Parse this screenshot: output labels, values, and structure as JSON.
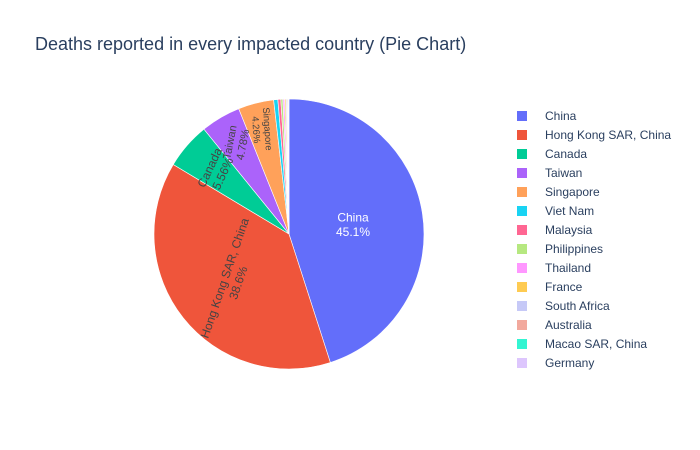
{
  "chart_data": {
    "type": "pie",
    "title": "Deaths reported in every impacted country (Pie Chart)",
    "slices": [
      {
        "label": "China",
        "percent": 45.1,
        "color": "#636efa",
        "text_label": "China",
        "text_value": "45.1%"
      },
      {
        "label": "Hong Kong SAR, China",
        "percent": 38.6,
        "color": "#ef553b",
        "text_label": "Hong Kong SAR, China",
        "text_value": "38.6%"
      },
      {
        "label": "Canada",
        "percent": 5.56,
        "color": "#00cc96",
        "text_label": "Canada",
        "text_value": "5.56%"
      },
      {
        "label": "Taiwan",
        "percent": 4.78,
        "color": "#ab63fa",
        "text_label": "Taiwan",
        "text_value": "4.78%"
      },
      {
        "label": "Singapore",
        "percent": 4.26,
        "color": "#ffa15a",
        "text_label": "Singapore",
        "text_value": "4.26%"
      },
      {
        "label": "Viet Nam",
        "percent": 0.5,
        "color": "#19d3f3"
      },
      {
        "label": "Malaysia",
        "percent": 0.35,
        "color": "#ff6692"
      },
      {
        "label": "Philippines",
        "percent": 0.25,
        "color": "#b6e880"
      },
      {
        "label": "Thailand",
        "percent": 0.2,
        "color": "#ff97ff"
      },
      {
        "label": "France",
        "percent": 0.15,
        "color": "#fecb52"
      },
      {
        "label": "South Africa",
        "percent": 0.13,
        "color": "#c6c9f7"
      },
      {
        "label": "Australia",
        "percent": 0.1,
        "color": "#f2a99d"
      },
      {
        "label": "Macao SAR, China",
        "percent": 0.08,
        "color": "#33f5d2"
      },
      {
        "label": "Germany",
        "percent": 0.06,
        "color": "#ddc6fd"
      }
    ],
    "legend_position": "right"
  }
}
